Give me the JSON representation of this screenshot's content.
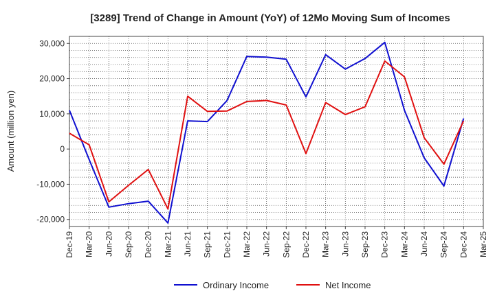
{
  "chart_data": {
    "type": "line",
    "title": "[3289]  Trend of Change in Amount (YoY) of 12Mo Moving Sum of Incomes",
    "xlabel": "",
    "ylabel": "Amount (million yen)",
    "ylim": [
      -22000,
      32000
    ],
    "yticks": [
      -20000,
      -10000,
      0,
      10000,
      20000,
      30000
    ],
    "ytick_labels": [
      "-20,000",
      "-10,000",
      "0",
      "10,000",
      "20,000",
      "30,000"
    ],
    "categories": [
      "Dec-19",
      "Mar-20",
      "Jun-20",
      "Sep-20",
      "Dec-20",
      "Mar-21",
      "Jun-21",
      "Sep-21",
      "Dec-21",
      "Mar-22",
      "Jun-22",
      "Sep-22",
      "Dec-22",
      "Mar-23",
      "Jun-23",
      "Sep-23",
      "Dec-23",
      "Mar-24",
      "Jun-24",
      "Sep-24",
      "Dec-24",
      "Mar-25"
    ],
    "grid": true,
    "legend_position": "bottom",
    "series": [
      {
        "name": "Ordinary Income",
        "color": "#1010d0",
        "values": [
          11000,
          -3000,
          -16500,
          -15500,
          -14800,
          -21000,
          8000,
          7800,
          13800,
          26300,
          26100,
          25500,
          14800,
          26800,
          22700,
          25700,
          30300,
          11000,
          -2500,
          -10500,
          8700,
          null
        ]
      },
      {
        "name": "Net Income",
        "color": "#e01010",
        "values": [
          4500,
          1200,
          -15000,
          -10300,
          -5800,
          -17000,
          15000,
          10700,
          10800,
          13500,
          13800,
          12500,
          -1300,
          13200,
          9800,
          12000,
          25000,
          20500,
          3200,
          -4300,
          8000,
          null
        ]
      }
    ]
  }
}
